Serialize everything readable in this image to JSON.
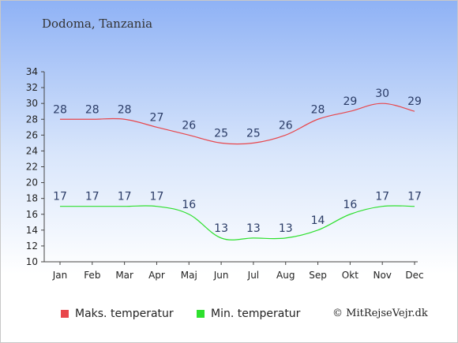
{
  "location": "Dodoma, Tanzania",
  "copyright": "© MitRejseVejr.dk",
  "colors": {
    "max": "#e8464b",
    "min": "#2ee02e",
    "axis": "#444444"
  },
  "chart_data": {
    "type": "line",
    "title": "Dodoma, Tanzania",
    "categories": [
      "Jan",
      "Feb",
      "Mar",
      "Apr",
      "Maj",
      "Jun",
      "Jul",
      "Aug",
      "Sep",
      "Okt",
      "Nov",
      "Dec"
    ],
    "ylim": [
      10,
      34
    ],
    "yticks": [
      10,
      12,
      14,
      16,
      18,
      20,
      22,
      24,
      26,
      28,
      30,
      32,
      34
    ],
    "grid": false,
    "legend_position": "bottom",
    "series": [
      {
        "name": "Maks. temperatur",
        "color": "#e8464b",
        "values": [
          28,
          28,
          28,
          27,
          26,
          25,
          25,
          26,
          28,
          29,
          30,
          29
        ]
      },
      {
        "name": "Min. temperatur",
        "color": "#2ee02e",
        "values": [
          17,
          17,
          17,
          17,
          16,
          13,
          13,
          13,
          14,
          16,
          17,
          17
        ]
      }
    ]
  }
}
